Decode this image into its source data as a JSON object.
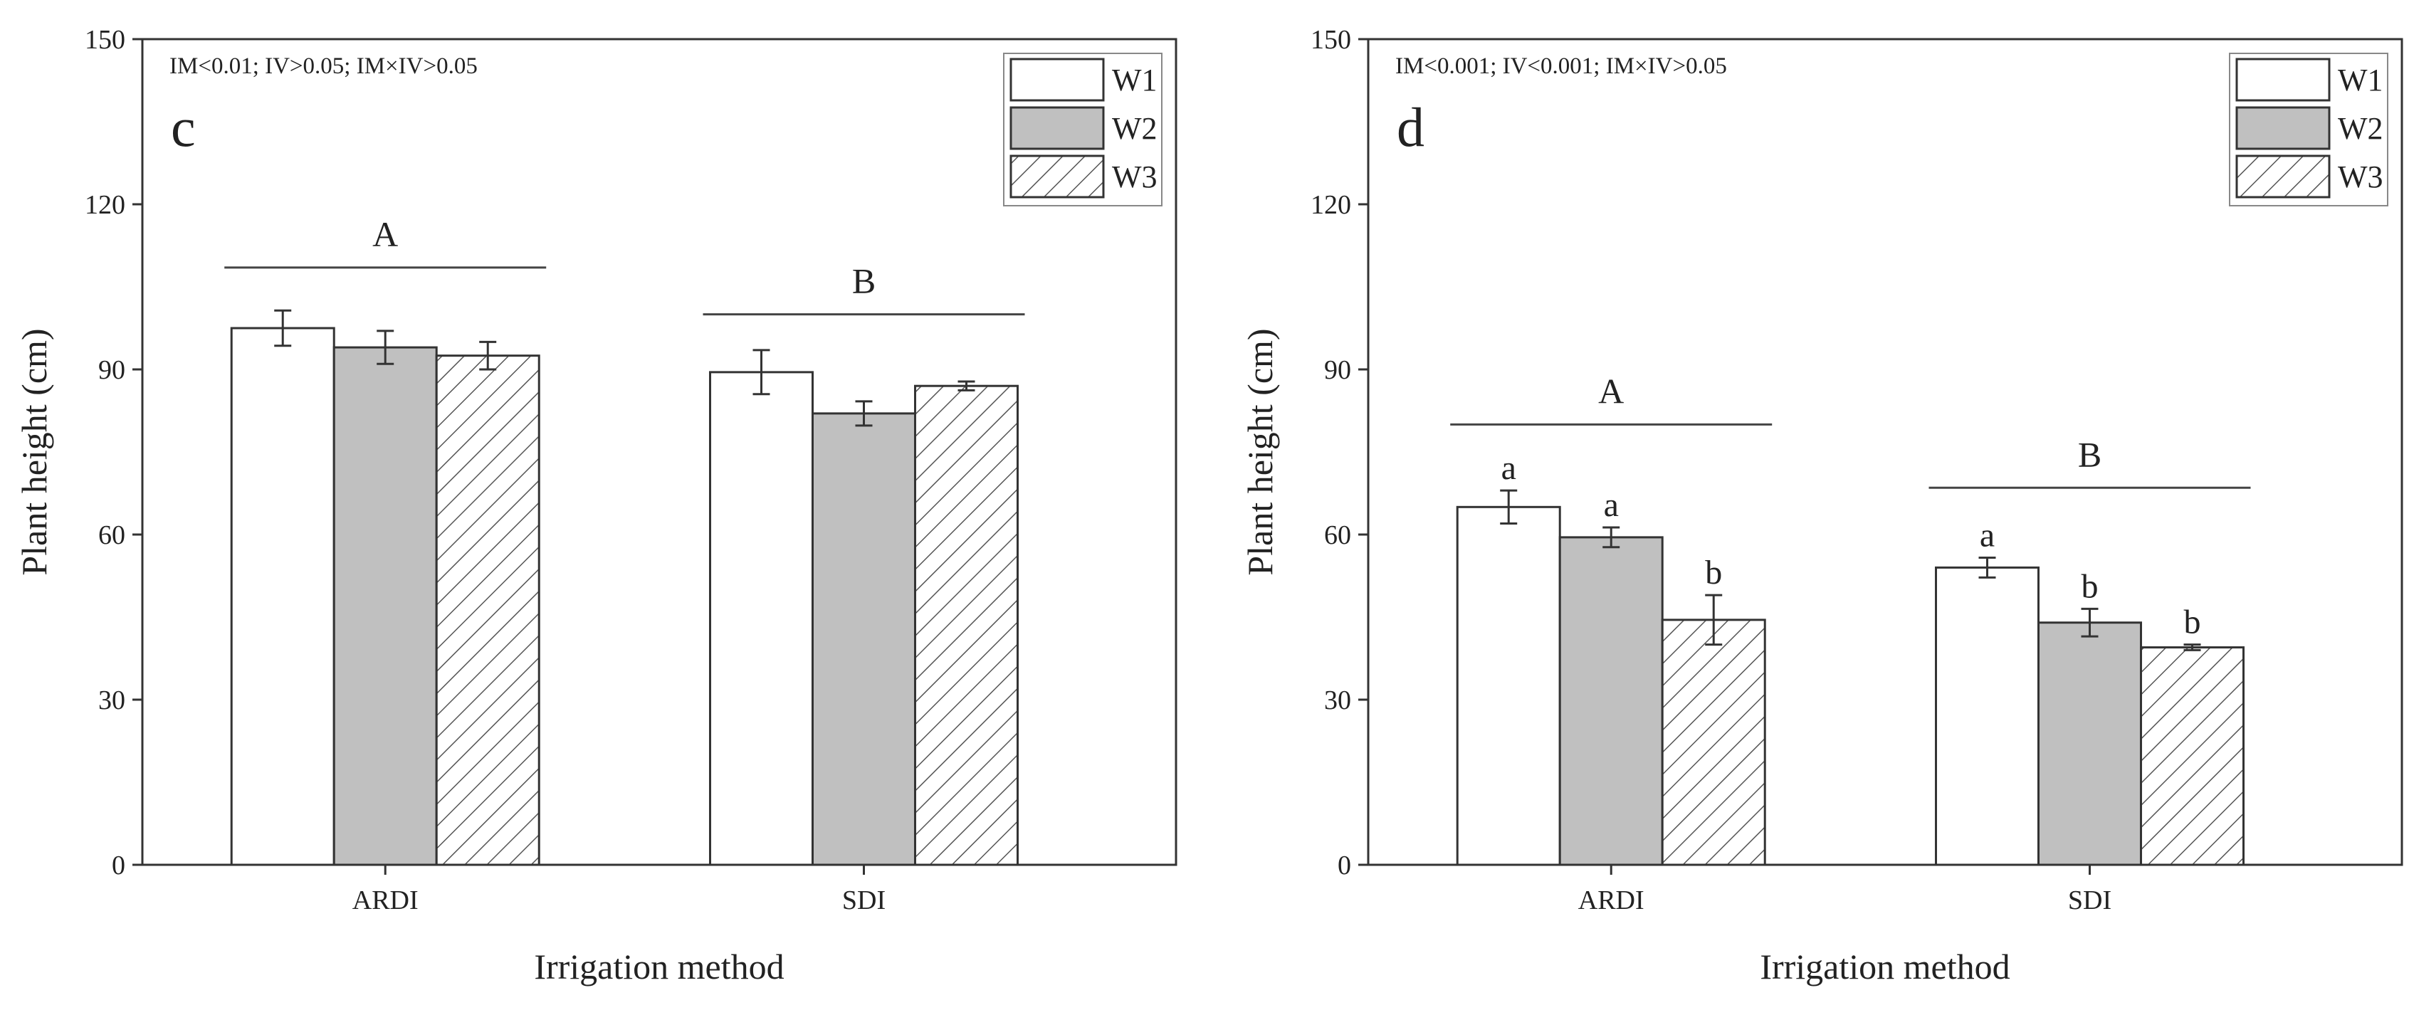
{
  "colors": {
    "W1": "#ffffff",
    "W2": "#c0c0c0",
    "W3": "#ffffff",
    "hatch": "#555555",
    "axis": "#333333",
    "bar_edge": "#333333"
  },
  "chart_data": [
    {
      "type": "bar",
      "panel": "c",
      "stats_text": "IM<0.01; IV>0.05; IM×IV>0.05",
      "xlabel": "Irrigation method",
      "ylabel": "Plant height (cm)",
      "ylim": [
        0,
        150
      ],
      "yticks": [
        0,
        30,
        60,
        90,
        120,
        150
      ],
      "categories": [
        "ARDI",
        "SDI"
      ],
      "legend": [
        "W1",
        "W2",
        "W3"
      ],
      "legend_position": "top-right",
      "series": [
        {
          "name": "W1",
          "pattern": "open",
          "values": [
            97.5,
            89.5
          ],
          "errors": [
            3.2,
            4.0
          ],
          "sig": [
            "",
            ""
          ]
        },
        {
          "name": "W2",
          "pattern": "gray",
          "values": [
            94,
            82
          ],
          "errors": [
            3.0,
            2.2
          ],
          "sig": [
            "",
            ""
          ]
        },
        {
          "name": "W3",
          "pattern": "hatched",
          "values": [
            92.5,
            87
          ],
          "errors": [
            2.5,
            0.8
          ],
          "sig": [
            "",
            ""
          ]
        }
      ],
      "group_letters": [
        {
          "category": "ARDI",
          "letter": "A",
          "line_value": 108.5
        },
        {
          "category": "SDI",
          "letter": "B",
          "line_value": 100
        }
      ]
    },
    {
      "type": "bar",
      "panel": "d",
      "stats_text": "IM<0.001; IV<0.001; IM×IV>0.05",
      "xlabel": "Irrigation method",
      "ylabel": "Plant height (cm)",
      "ylim": [
        0,
        150
      ],
      "yticks": [
        0,
        30,
        60,
        90,
        120,
        150
      ],
      "categories": [
        "ARDI",
        "SDI"
      ],
      "legend": [
        "W1",
        "W2",
        "W3"
      ],
      "legend_position": "top-right",
      "series": [
        {
          "name": "W1",
          "pattern": "open",
          "values": [
            65,
            54
          ],
          "errors": [
            3.0,
            1.8
          ],
          "sig": [
            "a",
            "a"
          ]
        },
        {
          "name": "W2",
          "pattern": "gray",
          "values": [
            59.5,
            44
          ],
          "errors": [
            1.8,
            2.5
          ],
          "sig": [
            "a",
            "b"
          ]
        },
        {
          "name": "W3",
          "pattern": "hatched",
          "values": [
            44.5,
            39.5
          ],
          "errors": [
            4.5,
            0.5
          ],
          "sig": [
            "b",
            "b"
          ]
        }
      ],
      "group_letters": [
        {
          "category": "ARDI",
          "letter": "A",
          "line_value": 80
        },
        {
          "category": "SDI",
          "letter": "B",
          "line_value": 68.5
        }
      ]
    }
  ]
}
